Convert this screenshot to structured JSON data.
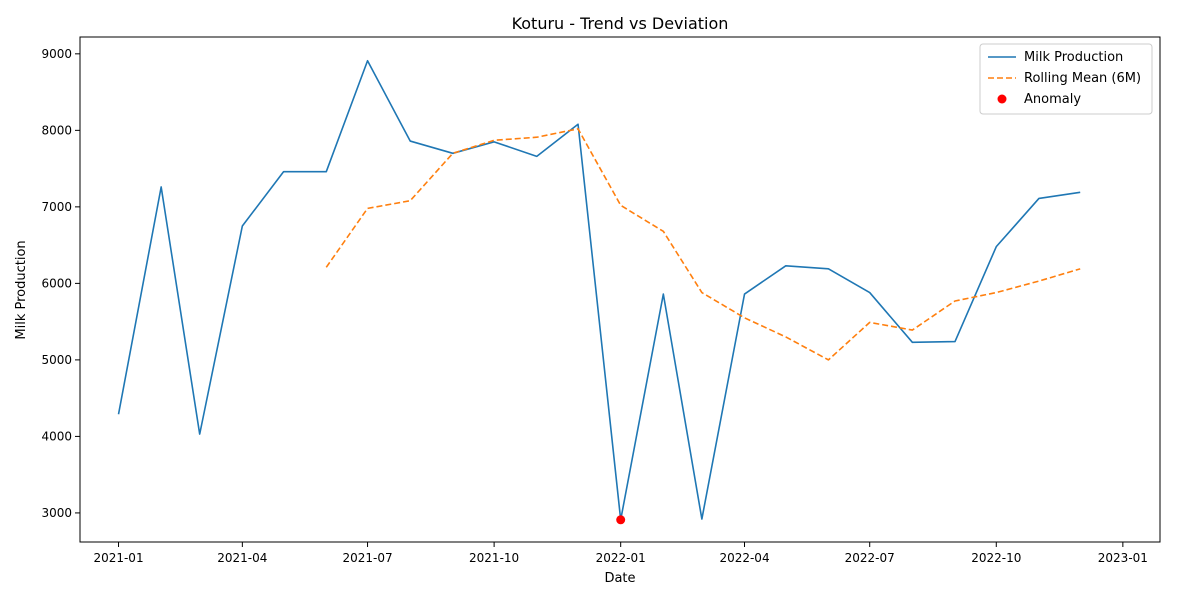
{
  "chart_data": {
    "type": "line",
    "title": "Koturu - Trend vs Deviation",
    "xlabel": "Date",
    "ylabel": "Milk Production",
    "x": [
      "2021-01",
      "2021-02",
      "2021-03",
      "2021-04",
      "2021-05",
      "2021-06",
      "2021-07",
      "2021-08",
      "2021-09",
      "2021-10",
      "2021-11",
      "2021-12",
      "2022-01",
      "2022-02",
      "2022-03",
      "2022-04",
      "2022-05",
      "2022-06",
      "2022-07",
      "2022-08",
      "2022-09",
      "2022-10",
      "2022-11",
      "2022-12"
    ],
    "series": [
      {
        "name": "Milk Production",
        "style": "solid",
        "color": "#1f77b4",
        "values": [
          4290,
          7260,
          4030,
          6750,
          7460,
          7460,
          8910,
          7860,
          7700,
          7850,
          7660,
          8080,
          2910,
          5860,
          2920,
          5860,
          6230,
          6190,
          5880,
          5230,
          5240,
          6480,
          7110,
          7190
        ]
      },
      {
        "name": "Rolling Mean (6M)",
        "style": "dashed",
        "color": "#ff7f0e",
        "values": [
          null,
          null,
          null,
          null,
          null,
          6210,
          6980,
          7080,
          7700,
          7870,
          7910,
          8020,
          7020,
          6680,
          5880,
          5550,
          5300,
          5000,
          5490,
          5390,
          5770,
          5880,
          6030,
          6190
        ]
      }
    ],
    "anomalies": {
      "name": "Anomaly",
      "color": "#ff0000",
      "points": [
        {
          "x": "2022-01",
          "y": 2910
        }
      ]
    },
    "x_ticks": [
      "2021-01",
      "2021-04",
      "2021-07",
      "2021-10",
      "2022-01",
      "2022-04",
      "2022-07",
      "2022-10",
      "2023-01"
    ],
    "y_ticks": [
      3000,
      4000,
      5000,
      6000,
      7000,
      8000,
      9000
    ],
    "xlim": [
      "2020-12-04",
      "2023-01-28"
    ],
    "ylim": [
      2620,
      9220
    ],
    "legend_position": "top-right",
    "grid": false
  }
}
